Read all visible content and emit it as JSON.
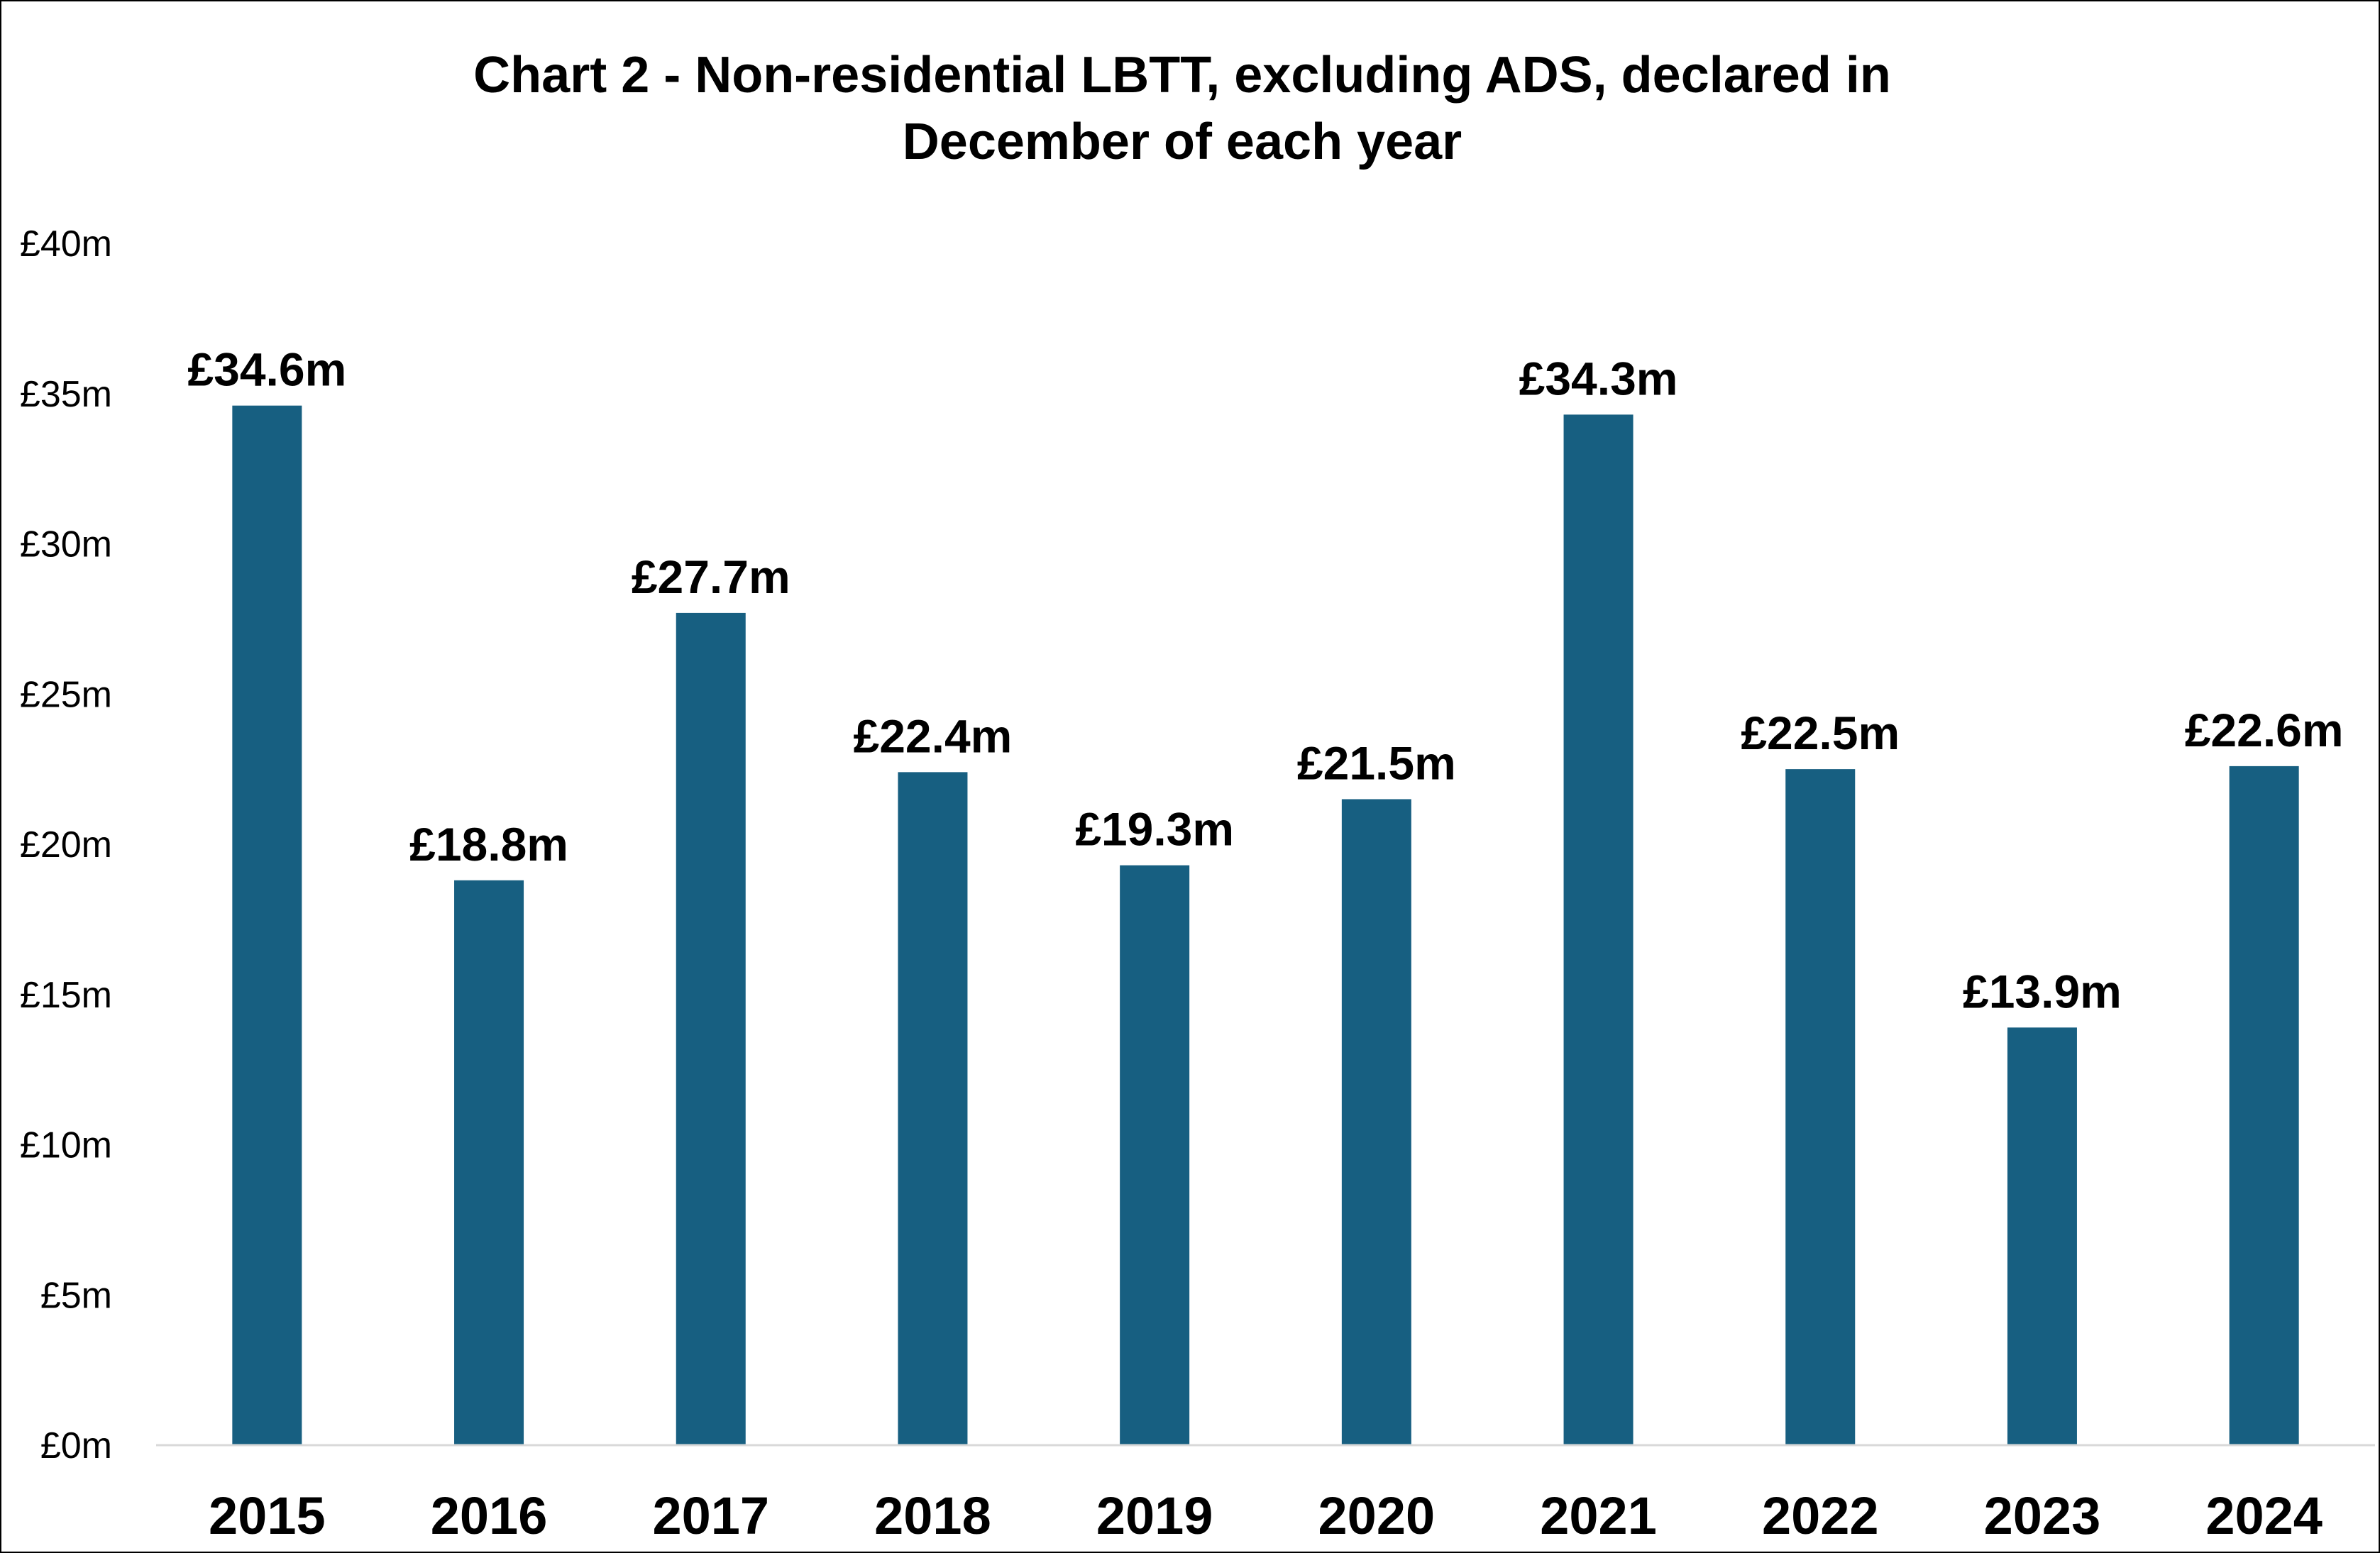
{
  "chart_data": {
    "type": "bar",
    "title_lines": [
      "Chart 2 - Non-residential LBTT, excluding ADS, declared in",
      "December of each year"
    ],
    "categories": [
      "2015",
      "2016",
      "2017",
      "2018",
      "2019",
      "2020",
      "2021",
      "2022",
      "2023",
      "2024"
    ],
    "values": [
      34.6,
      18.8,
      27.7,
      22.4,
      19.3,
      21.5,
      34.3,
      22.5,
      13.9,
      22.6
    ],
    "data_labels": [
      "£34.6m",
      "£18.8m",
      "£27.7m",
      "£22.4m",
      "£19.3m",
      "£21.5m",
      "£34.3m",
      "£22.5m",
      "£13.9m",
      "£22.6m"
    ],
    "y_ticks": [
      0,
      5,
      10,
      15,
      20,
      25,
      30,
      35,
      40
    ],
    "y_tick_labels": [
      "£0m",
      "£5m",
      "£10m",
      "£15m",
      "£20m",
      "£25m",
      "£30m",
      "£35m",
      "£40m"
    ],
    "ylim": [
      0,
      40
    ],
    "xlabel": "",
    "ylabel": "",
    "grid": false,
    "legend": "none",
    "colors": {
      "bar": "#175f81",
      "axis": "#d9d9d9",
      "text": "#000000"
    }
  }
}
